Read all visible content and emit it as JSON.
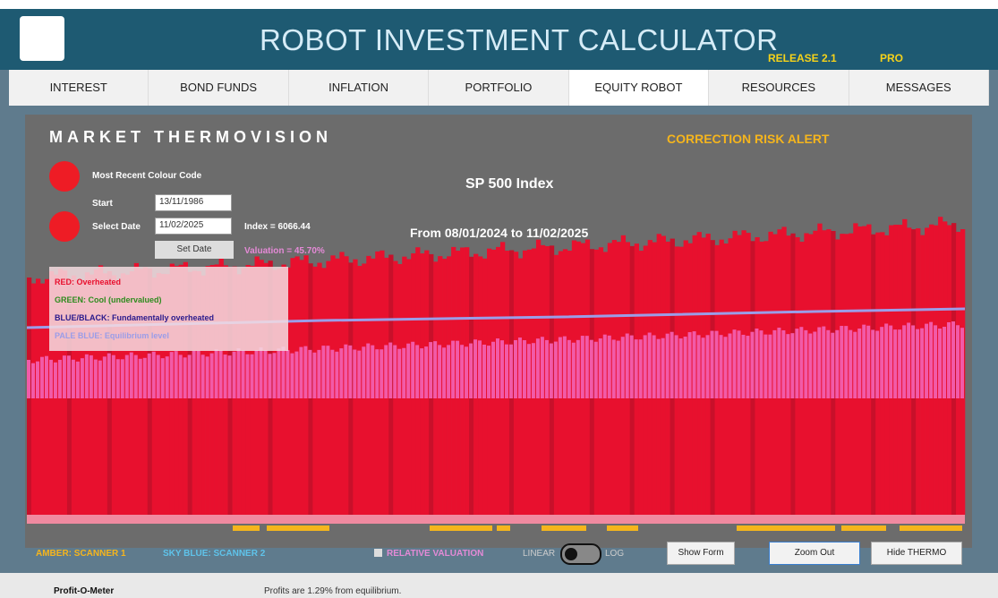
{
  "header": {
    "title": "ROBOT INVESTMENT CALCULATOR",
    "release": "RELEASE 2.1",
    "edition": "PRO"
  },
  "tabs": [
    "INTEREST",
    "BOND FUNDS",
    "INFLATION",
    "PORTFOLIO",
    "EQUITY ROBOT",
    "RESOURCES",
    "MESSAGES"
  ],
  "active_tab": 4,
  "panel": {
    "title": "MARKET THERMOVISION",
    "alert": "CORRECTION RISK ALERT",
    "most_recent": "Most Recent Colour Code",
    "start_label": "Start",
    "start_value": "13/11/1986",
    "select_label": "Select Date",
    "select_value": "11/02/2025",
    "index": "Index = 6066.44",
    "set_date": "Set Date",
    "valuation": "Valuation = 45.70%",
    "chart_title": "SP 500 Index",
    "range": "From 08/01/2024 to 11/02/2025",
    "legend": [
      {
        "text": "RED: Overheated",
        "color": "#e8102e"
      },
      {
        "text": "GREEN: Cool (undervalued)",
        "color": "#2e8b1e"
      },
      {
        "text": "BLUE/BLACK: Fundamentally overheated",
        "color": "#2a1a8c"
      },
      {
        "text": "PALE BLUE: Equilibrium level",
        "color": "#9b9de8"
      }
    ]
  },
  "footer": {
    "scanner1": "AMBER: SCANNER 1",
    "scanner2": "SKY BLUE: SCANNER 2",
    "relative": "RELATIVE VALUATION",
    "linear": "LINEAR",
    "log": "LOG",
    "buttons": [
      "Show Form",
      "Zoom Out",
      "Hide THERMO"
    ]
  },
  "status": {
    "label": "Profit-O-Meter",
    "message": "Profits are 1.29% from equilibrium."
  }
}
